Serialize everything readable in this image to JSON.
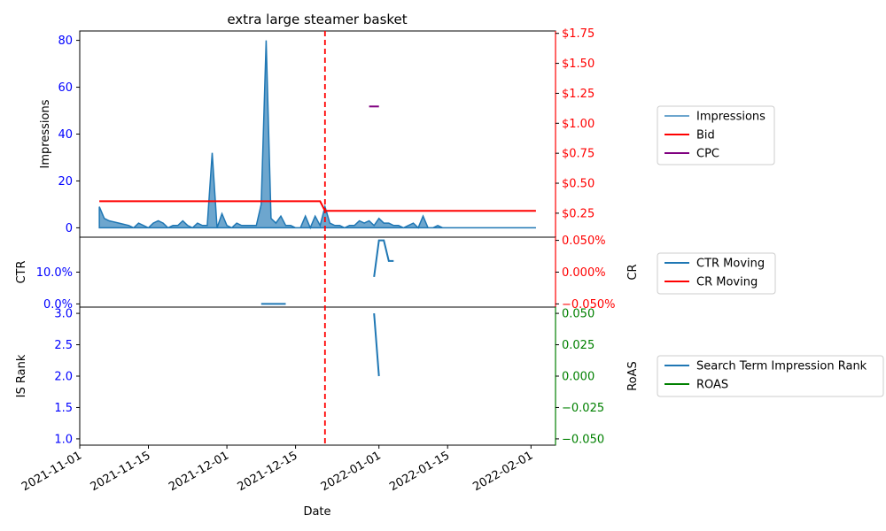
{
  "chart_data": {
    "title": "extra large steamer basket",
    "xlabel": "Date",
    "x_ticks": [
      "2021-11-01",
      "2021-11-15",
      "2021-12-01",
      "2021-12-15",
      "2022-01-01",
      "2022-01-15",
      "2022-02-01"
    ],
    "x_range": [
      "2021-11-01",
      "2022-02-06"
    ],
    "marker_date": "2021-12-21",
    "colors": {
      "impressions": "#1f77b4",
      "bid": "#ff0000",
      "cpc": "#800080",
      "roas": "#008000",
      "left_axis": "#0000ff",
      "marker": "#ff0000"
    },
    "panels": [
      {
        "type": "area+line",
        "ylabel": "Impressions",
        "ylim": [
          -4,
          84
        ],
        "yticks": [
          0,
          20,
          40,
          60,
          80
        ],
        "y2label": "",
        "y2lim": [
          0.05,
          1.77
        ],
        "y2ticks": [
          "$0.25",
          "$0.50",
          "$0.75",
          "$1.00",
          "$1.25",
          "$1.50",
          "$1.75"
        ],
        "y2tick_values": [
          0.25,
          0.5,
          0.75,
          1.0,
          1.25,
          1.5,
          1.75
        ],
        "series": [
          {
            "name": "Impressions",
            "axis": "left",
            "style": "area",
            "x": [
              "2021-11-05",
              "2021-11-06",
              "2021-11-07",
              "2021-11-09",
              "2021-11-11",
              "2021-11-12",
              "2021-11-13",
              "2021-11-14",
              "2021-11-15",
              "2021-11-16",
              "2021-11-17",
              "2021-11-18",
              "2021-11-19",
              "2021-11-20",
              "2021-11-21",
              "2021-11-22",
              "2021-11-23",
              "2021-11-24",
              "2021-11-25",
              "2021-11-26",
              "2021-11-27",
              "2021-11-28",
              "2021-11-29",
              "2021-11-30",
              "2021-12-01",
              "2021-12-02",
              "2021-12-03",
              "2021-12-04",
              "2021-12-05",
              "2021-12-06",
              "2021-12-07",
              "2021-12-08",
              "2021-12-09",
              "2021-12-10",
              "2021-12-11",
              "2021-12-12",
              "2021-12-13",
              "2021-12-14",
              "2021-12-15",
              "2021-12-16",
              "2021-12-17",
              "2021-12-18",
              "2021-12-19",
              "2021-12-20",
              "2021-12-21",
              "2021-12-22",
              "2021-12-23",
              "2021-12-24",
              "2021-12-25",
              "2021-12-26",
              "2021-12-27",
              "2021-12-28",
              "2021-12-29",
              "2021-12-30",
              "2021-12-31",
              "2022-01-01",
              "2022-01-02",
              "2022-01-03",
              "2022-01-04",
              "2022-01-05",
              "2022-01-06",
              "2022-01-07",
              "2022-01-08",
              "2022-01-09",
              "2022-01-10",
              "2022-01-11",
              "2022-01-12",
              "2022-01-13",
              "2022-01-14",
              "2022-01-15",
              "2022-01-18",
              "2022-01-22",
              "2022-01-26",
              "2022-01-30",
              "2022-02-02"
            ],
            "values": [
              9,
              4,
              3,
              2,
              1,
              0,
              2,
              1,
              0,
              2,
              3,
              2,
              0,
              1,
              1,
              3,
              1,
              0,
              2,
              1,
              1,
              32,
              0,
              6,
              1,
              0,
              2,
              1,
              1,
              1,
              1,
              10,
              80,
              4,
              2,
              5,
              1,
              1,
              0,
              0,
              5,
              0,
              5,
              1,
              9,
              2,
              1,
              1,
              0,
              1,
              1,
              3,
              2,
              3,
              1,
              4,
              2,
              2,
              1,
              1,
              0,
              1,
              2,
              0,
              5,
              0,
              0,
              1,
              0,
              0,
              0,
              0,
              0,
              0,
              0
            ]
          },
          {
            "name": "Bid",
            "axis": "right",
            "style": "line",
            "x": [
              "2021-11-05",
              "2021-12-20",
              "2021-12-21",
              "2022-02-02"
            ],
            "values": [
              0.35,
              0.35,
              0.27,
              0.27
            ]
          },
          {
            "name": "CPC",
            "axis": "right",
            "style": "line",
            "x": [
              "2021-12-30",
              "2022-01-01"
            ],
            "values": [
              1.14,
              1.14
            ]
          }
        ]
      },
      {
        "type": "line",
        "ylabel": "CTR",
        "ylim": [
          -0.01,
          0.21
        ],
        "yticks": [
          "0.0%",
          "10.0%"
        ],
        "ytick_values": [
          0.0,
          0.1
        ],
        "y2label": "CR",
        "y2lim": [
          -0.055,
          0.055
        ],
        "y2ticks": [
          "−0.050%",
          "0.000%",
          "0.050%"
        ],
        "y2tick_values": [
          -0.05,
          0.0,
          0.05
        ],
        "series": [
          {
            "name": "CTR Moving",
            "axis": "left",
            "x": [
              "2021-12-08",
              "2021-12-13"
            ],
            "values": [
              0.0,
              0.0
            ]
          },
          {
            "name": "CTR Moving",
            "axis": "left",
            "x": [
              "2021-12-31",
              "2022-01-01",
              "2022-01-02",
              "2022-01-03",
              "2022-01-04"
            ],
            "values": [
              0.085,
              0.2,
              0.2,
              0.135,
              0.135
            ]
          },
          {
            "name": "CR Moving",
            "axis": "right",
            "x": [],
            "values": []
          }
        ]
      },
      {
        "type": "line",
        "ylabel": "IS Rank",
        "ylim": [
          0.9,
          3.1
        ],
        "yticks": [
          "1.0",
          "1.5",
          "2.0",
          "2.5",
          "3.0"
        ],
        "ytick_values": [
          1.0,
          1.5,
          2.0,
          2.5,
          3.0
        ],
        "y2label": "RoAS",
        "y2lim": [
          -0.055,
          0.055
        ],
        "y2ticks": [
          "−0.050",
          "−0.025",
          "0.000",
          "0.025",
          "0.050"
        ],
        "y2tick_values": [
          -0.05,
          -0.025,
          0.0,
          0.025,
          0.05
        ],
        "series": [
          {
            "name": "Search Term Impression Rank",
            "axis": "left",
            "x": [
              "2021-12-31",
              "2022-01-01"
            ],
            "values": [
              3.0,
              2.0
            ]
          },
          {
            "name": "ROAS",
            "axis": "right",
            "x": [],
            "values": []
          }
        ]
      }
    ],
    "legends": [
      [
        "Impressions",
        "Bid",
        "CPC"
      ],
      [
        "CTR Moving",
        "CR Moving"
      ],
      [
        "Search Term Impression Rank",
        "ROAS"
      ]
    ]
  }
}
